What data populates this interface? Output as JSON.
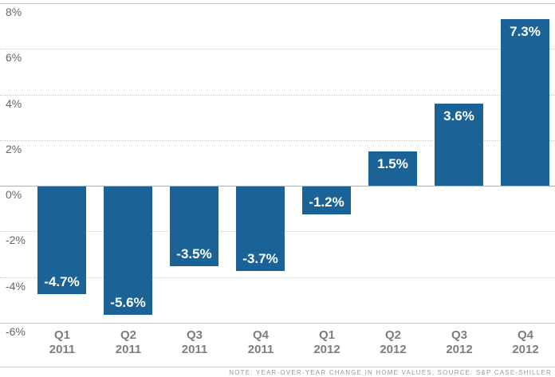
{
  "chart_data": {
    "type": "bar",
    "categories": [
      "Q1 2011",
      "Q2 2011",
      "Q3 2011",
      "Q4 2011",
      "Q1 2012",
      "Q2 2012",
      "Q3 2012",
      "Q4 2012"
    ],
    "values": [
      -4.7,
      -5.6,
      -3.5,
      -3.7,
      -1.2,
      1.5,
      3.6,
      7.3
    ],
    "bar_labels": [
      "-4.7%",
      "-5.6%",
      "-3.5%",
      "-3.7%",
      "-1.2%",
      "1.5%",
      "3.6%",
      "7.3%"
    ],
    "ylim": [
      -6,
      8
    ],
    "yticks": [
      {
        "value": 8,
        "label": "8%",
        "line": "solid"
      },
      {
        "value": 6,
        "label": "6%",
        "line": "dotted"
      },
      {
        "value": 4,
        "label": "4%",
        "line": "dotted"
      },
      {
        "value": 2,
        "label": "2%",
        "line": "dotted"
      },
      {
        "value": 0,
        "label": "0%",
        "line": "zero"
      },
      {
        "value": -2,
        "label": "-2%",
        "line": "dotted"
      },
      {
        "value": -4,
        "label": "-4%",
        "line": "dotted"
      },
      {
        "value": -6,
        "label": "-6%",
        "line": "solid"
      }
    ],
    "grid": "horizontal",
    "legend": "none",
    "bar_color": "#1b6397",
    "note": "NOTE: YEAR-OVER-YEAR CHANGE IN HOME VALUES; SOURCE: S&P CASE-SHILLER"
  }
}
